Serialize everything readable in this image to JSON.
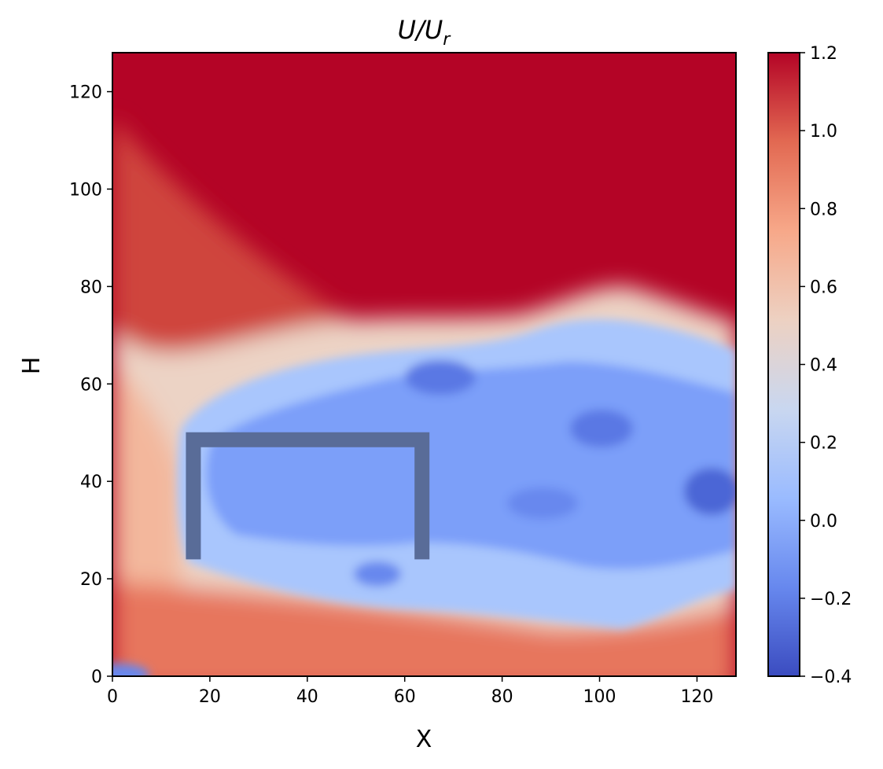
{
  "chart_data": {
    "type": "heatmap",
    "title_main": "U/U",
    "title_sub": "r",
    "xlabel": "X",
    "ylabel": "H",
    "xlim": [
      0,
      128
    ],
    "ylim": [
      0,
      128
    ],
    "x_ticks": [
      0,
      20,
      40,
      60,
      80,
      100,
      120
    ],
    "y_ticks": [
      0,
      20,
      40,
      60,
      80,
      100,
      120
    ],
    "colorbar": {
      "colormap": "coolwarm",
      "range": [
        -0.4,
        1.2
      ],
      "ticks": [
        1.2,
        1.0,
        0.8,
        0.6,
        0.4,
        0.2,
        0.0,
        -0.2,
        -0.4
      ],
      "tick_labels": [
        "1.2",
        "1.0",
        "0.8",
        "0.6",
        "0.4",
        "0.2",
        "0.0",
        "−0.2",
        "−0.4"
      ],
      "stops": [
        "#3b4cc0",
        "#6788ee",
        "#9abbff",
        "#c9d7f0",
        "#edd1c2",
        "#f7a889",
        "#e26952",
        "#b40426"
      ]
    },
    "field_description_points": {
      "upper_flow_value": 1.2,
      "shear_layer_value": 0.4,
      "wake_value": 0.0,
      "wake_core_min": -0.25,
      "near_ground_value": 0.8
    },
    "obstacle": {
      "shape": "open-bottom rectangle outline",
      "x_range": [
        15,
        65
      ],
      "y_range": [
        24,
        50
      ],
      "color": "#596c98"
    }
  }
}
